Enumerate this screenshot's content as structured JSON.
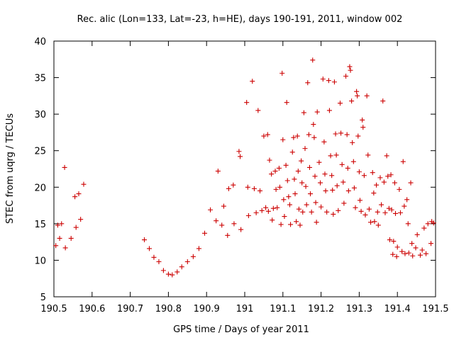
{
  "chart_data": {
    "type": "scatter",
    "title": "Rec. alic (Lon=133, Lat=-23, h=HE), days 190-191, 2011, window 002",
    "xlabel": "GPS time / Days of year 2011",
    "ylabel": "STEC from uqrg / TECUs",
    "xlim": [
      190.5,
      191.5
    ],
    "ylim": [
      5,
      40
    ],
    "xticks": [
      "190.5",
      "190.6",
      "190.7",
      "190.8",
      "190.9",
      "191",
      "191.1",
      "191.2",
      "191.3",
      "191.4",
      "191.5"
    ],
    "yticks": [
      "5",
      "10",
      "15",
      "20",
      "25",
      "30",
      "35",
      "40"
    ],
    "grid": false,
    "marker": "+",
    "color": "#cc0000",
    "points": [
      [
        190.505,
        12.0
      ],
      [
        190.51,
        14.8
      ],
      [
        190.515,
        13.0
      ],
      [
        190.52,
        15.0
      ],
      [
        190.528,
        22.7
      ],
      [
        190.53,
        11.7
      ],
      [
        190.545,
        13.0
      ],
      [
        190.555,
        18.7
      ],
      [
        190.558,
        14.5
      ],
      [
        190.565,
        19.1
      ],
      [
        190.57,
        15.6
      ],
      [
        190.578,
        20.4
      ],
      [
        190.737,
        12.8
      ],
      [
        190.75,
        11.6
      ],
      [
        190.762,
        10.4
      ],
      [
        190.775,
        9.8
      ],
      [
        190.787,
        8.6
      ],
      [
        190.8,
        8.1
      ],
      [
        190.81,
        8.0
      ],
      [
        190.823,
        8.4
      ],
      [
        190.835,
        9.1
      ],
      [
        190.85,
        9.8
      ],
      [
        190.865,
        10.5
      ],
      [
        190.88,
        11.6
      ],
      [
        190.895,
        13.7
      ],
      [
        190.91,
        16.9
      ],
      [
        190.925,
        15.4
      ],
      [
        190.93,
        22.2
      ],
      [
        190.94,
        14.8
      ],
      [
        190.945,
        17.4
      ],
      [
        190.955,
        13.4
      ],
      [
        190.958,
        19.8
      ],
      [
        190.97,
        20.3
      ],
      [
        190.972,
        15.0
      ],
      [
        190.985,
        24.9
      ],
      [
        190.988,
        24.2
      ],
      [
        190.99,
        14.2
      ],
      [
        191.005,
        31.6
      ],
      [
        191.008,
        20.0
      ],
      [
        191.01,
        16.1
      ],
      [
        191.02,
        34.5
      ],
      [
        191.025,
        19.8
      ],
      [
        191.03,
        16.5
      ],
      [
        191.035,
        30.5
      ],
      [
        191.04,
        19.5
      ],
      [
        191.045,
        16.8
      ],
      [
        191.05,
        27.0
      ],
      [
        191.055,
        17.2
      ],
      [
        191.06,
        27.2
      ],
      [
        191.062,
        16.7
      ],
      [
        191.065,
        23.7
      ],
      [
        191.07,
        21.8
      ],
      [
        191.072,
        15.5
      ],
      [
        191.075,
        17.1
      ],
      [
        191.08,
        22.2
      ],
      [
        191.082,
        19.7
      ],
      [
        191.085,
        17.2
      ],
      [
        191.09,
        22.6
      ],
      [
        191.092,
        20.0
      ],
      [
        191.095,
        14.9
      ],
      [
        191.098,
        35.6
      ],
      [
        191.1,
        26.5
      ],
      [
        191.102,
        18.3
      ],
      [
        191.104,
        16.0
      ],
      [
        191.108,
        23.0
      ],
      [
        191.11,
        31.6
      ],
      [
        191.112,
        20.9
      ],
      [
        191.115,
        18.7
      ],
      [
        191.118,
        17.6
      ],
      [
        191.12,
        14.9
      ],
      [
        191.125,
        24.8
      ],
      [
        191.128,
        26.8
      ],
      [
        191.13,
        21.1
      ],
      [
        191.132,
        19.1
      ],
      [
        191.135,
        15.3
      ],
      [
        191.138,
        27.0
      ],
      [
        191.14,
        22.2
      ],
      [
        191.142,
        17.0
      ],
      [
        191.145,
        14.8
      ],
      [
        191.148,
        23.6
      ],
      [
        191.15,
        20.6
      ],
      [
        191.152,
        16.6
      ],
      [
        191.155,
        30.2
      ],
      [
        191.158,
        25.3
      ],
      [
        191.16,
        20.1
      ],
      [
        191.162,
        17.6
      ],
      [
        191.165,
        34.3
      ],
      [
        191.168,
        27.2
      ],
      [
        191.17,
        22.7
      ],
      [
        191.172,
        19.1
      ],
      [
        191.175,
        16.6
      ],
      [
        191.178,
        37.4
      ],
      [
        191.18,
        28.6
      ],
      [
        191.182,
        26.8
      ],
      [
        191.184,
        21.5
      ],
      [
        191.186,
        17.9
      ],
      [
        191.188,
        15.2
      ],
      [
        191.19,
        30.3
      ],
      [
        191.195,
        23.4
      ],
      [
        191.198,
        20.6
      ],
      [
        191.2,
        17.3
      ],
      [
        191.205,
        34.8
      ],
      [
        191.208,
        26.2
      ],
      [
        191.21,
        21.8
      ],
      [
        191.212,
        19.5
      ],
      [
        191.215,
        16.6
      ],
      [
        191.22,
        34.6
      ],
      [
        191.222,
        30.5
      ],
      [
        191.225,
        24.3
      ],
      [
        191.228,
        21.6
      ],
      [
        191.23,
        19.6
      ],
      [
        191.232,
        16.3
      ],
      [
        191.235,
        34.4
      ],
      [
        191.238,
        27.3
      ],
      [
        191.24,
        24.4
      ],
      [
        191.242,
        20.2
      ],
      [
        191.245,
        16.8
      ],
      [
        191.25,
        31.5
      ],
      [
        191.252,
        27.4
      ],
      [
        191.255,
        23.1
      ],
      [
        191.258,
        20.7
      ],
      [
        191.26,
        17.8
      ],
      [
        191.265,
        35.2
      ],
      [
        191.268,
        27.2
      ],
      [
        191.27,
        22.6
      ],
      [
        191.272,
        19.5
      ],
      [
        191.275,
        36.5
      ],
      [
        191.277,
        36.0
      ],
      [
        191.28,
        31.8
      ],
      [
        191.282,
        26.1
      ],
      [
        191.285,
        23.5
      ],
      [
        191.287,
        19.9
      ],
      [
        191.29,
        17.2
      ],
      [
        191.293,
        33.1
      ],
      [
        191.295,
        32.5
      ],
      [
        191.297,
        27.0
      ],
      [
        191.3,
        22.1
      ],
      [
        191.302,
        18.2
      ],
      [
        191.305,
        16.7
      ],
      [
        191.308,
        29.2
      ],
      [
        191.31,
        28.2
      ],
      [
        191.313,
        21.6
      ],
      [
        191.316,
        16.2
      ],
      [
        191.32,
        32.5
      ],
      [
        191.323,
        24.4
      ],
      [
        191.326,
        17.0
      ],
      [
        191.33,
        15.2
      ],
      [
        191.335,
        22.0
      ],
      [
        191.338,
        19.2
      ],
      [
        191.34,
        15.3
      ],
      [
        191.345,
        20.3
      ],
      [
        191.348,
        16.6
      ],
      [
        191.35,
        14.8
      ],
      [
        191.355,
        21.3
      ],
      [
        191.358,
        17.6
      ],
      [
        191.362,
        31.8
      ],
      [
        191.365,
        20.7
      ],
      [
        191.368,
        16.5
      ],
      [
        191.372,
        24.3
      ],
      [
        191.375,
        21.5
      ],
      [
        191.378,
        17.1
      ],
      [
        191.38,
        12.8
      ],
      [
        191.383,
        21.7
      ],
      [
        191.385,
        16.9
      ],
      [
        191.388,
        10.8
      ],
      [
        191.39,
        12.6
      ],
      [
        191.393,
        20.6
      ],
      [
        191.395,
        16.4
      ],
      [
        191.398,
        10.5
      ],
      [
        191.4,
        11.8
      ],
      [
        191.405,
        19.7
      ],
      [
        191.408,
        16.5
      ],
      [
        191.412,
        11.2
      ],
      [
        191.415,
        23.5
      ],
      [
        191.418,
        17.4
      ],
      [
        191.42,
        10.9
      ],
      [
        191.425,
        18.3
      ],
      [
        191.428,
        15.0
      ],
      [
        191.43,
        11.0
      ],
      [
        191.435,
        20.6
      ],
      [
        191.438,
        12.3
      ],
      [
        191.44,
        10.6
      ],
      [
        191.448,
        11.7
      ],
      [
        191.452,
        13.5
      ],
      [
        191.46,
        10.7
      ],
      [
        191.465,
        11.4
      ],
      [
        191.47,
        14.4
      ],
      [
        191.475,
        10.9
      ],
      [
        191.48,
        15.0
      ],
      [
        191.488,
        12.3
      ],
      [
        191.49,
        15.3
      ],
      [
        191.495,
        15.1
      ]
    ]
  }
}
